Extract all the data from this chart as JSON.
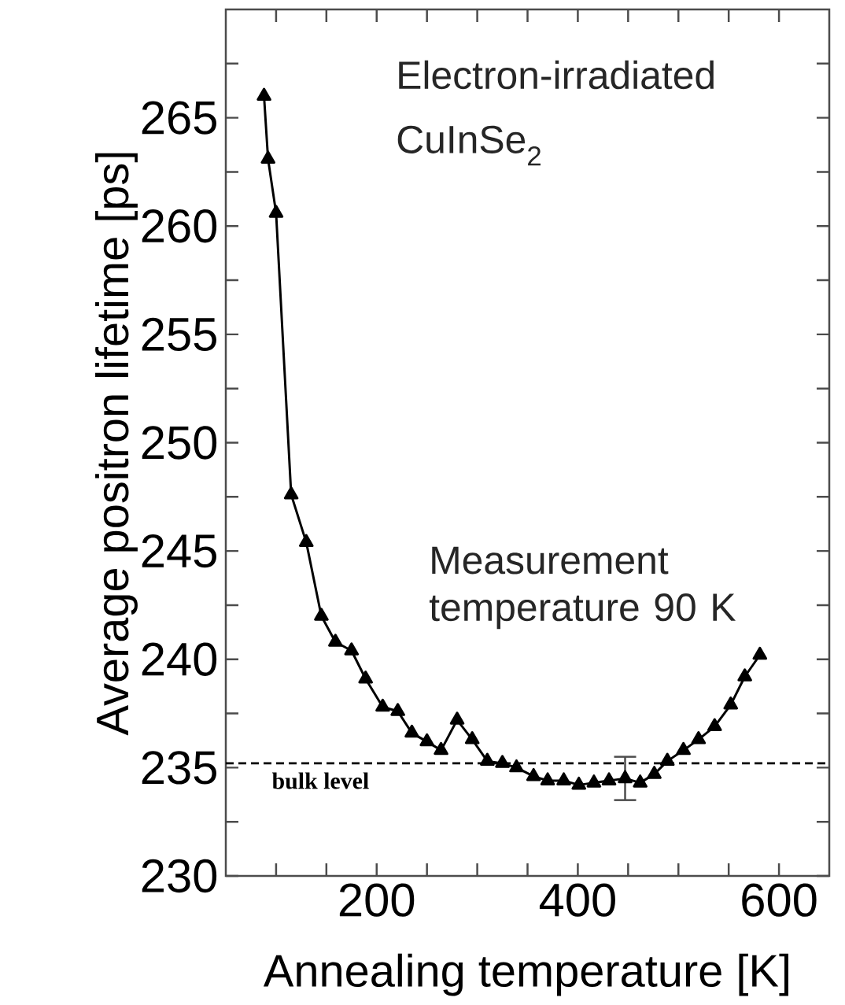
{
  "chart_data": {
    "type": "line",
    "xlabel": "Annealing temperature [K]",
    "ylabel": "Average positron lifetime [ps]",
    "annotations": [
      "Electron-irradiated",
      "CuInSe$_{2}$",
      "Measurement temperature 90 K"
    ],
    "xlim": [
      50,
      650
    ],
    "xticks": [
      {
        "value": 100,
        "label": null
      },
      {
        "value": 150,
        "label": null
      },
      200,
      {
        "value": 250,
        "label": null
      },
      {
        "value": 300,
        "label": null
      },
      {
        "value": 350,
        "label": null
      },
      400,
      {
        "value": 450,
        "label": null
      },
      {
        "value": 500,
        "label": null
      },
      {
        "value": 550,
        "label": null
      },
      600
    ],
    "ylim": [
      230,
      270
    ],
    "yticks": [
      230,
      {
        "value": 232.5,
        "label": null
      },
      235,
      {
        "value": 237.5,
        "label": null
      },
      240,
      {
        "value": 242.5,
        "label": null
      },
      245,
      {
        "value": 247.5,
        "label": null
      },
      250,
      {
        "value": 252.5,
        "label": null
      },
      255,
      {
        "value": 257.5,
        "label": null
      },
      260,
      {
        "value": 262.5,
        "label": null
      },
      265,
      {
        "value": 267.5,
        "label": null
      }
    ],
    "grid": false,
    "marker": "triangle",
    "line_style": "solid",
    "ref_lines": [
      {
        "axis": "y",
        "value": 235.2,
        "label": "bulk level",
        "color": "#000000",
        "line_style": "dashed"
      }
    ],
    "series": [
      {
        "color": "#000000",
        "x": [
          88,
          92,
          100,
          115,
          130,
          145,
          159,
          175,
          189,
          206,
          221,
          235,
          250,
          264,
          280,
          295,
          310,
          325,
          339,
          356,
          370,
          386,
          401,
          416,
          431,
          447,
          462,
          476,
          489,
          505,
          520,
          536,
          552,
          566,
          581
        ],
        "values": [
          266.0,
          263.1,
          260.6,
          247.6,
          245.4,
          242.0,
          240.8,
          240.4,
          239.1,
          237.8,
          237.6,
          236.6,
          236.2,
          235.8,
          237.2,
          236.3,
          235.3,
          235.2,
          235.0,
          234.6,
          234.4,
          234.4,
          234.2,
          234.3,
          234.4,
          234.5,
          234.3,
          234.7,
          235.3,
          235.8,
          236.3,
          236.9,
          237.9,
          239.2,
          240.2
        ],
        "errors": [
          null,
          null,
          null,
          null,
          null,
          null,
          null,
          null,
          null,
          null,
          null,
          null,
          null,
          null,
          null,
          null,
          null,
          null,
          null,
          null,
          null,
          null,
          null,
          null,
          null,
          1.0,
          null,
          null,
          null,
          null,
          null,
          null,
          null,
          null,
          null
        ]
      }
    ]
  }
}
